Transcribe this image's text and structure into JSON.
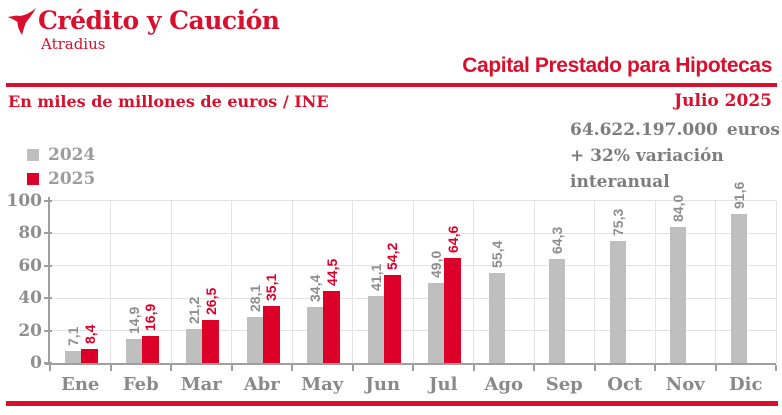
{
  "header": {
    "brand": {
      "name": "Crédito y Caución",
      "subname": "Atradius"
    },
    "title": "Capital Prestado para Hipotecas",
    "subtitle_left": "En miles de millones de euros / INE",
    "period": "Julio 2025"
  },
  "stats": {
    "value": "64.622.197.000",
    "unit": "euros",
    "line2": "+ 32% variación interanual"
  },
  "legend": {
    "items": [
      {
        "label": "2024",
        "color": "#bfbfbf"
      },
      {
        "label": "2025",
        "color": "#dc0028"
      }
    ]
  },
  "chart_data": {
    "type": "bar",
    "categories": [
      "Ene",
      "Feb",
      "Mar",
      "Abr",
      "May",
      "Jun",
      "Jul",
      "Ago",
      "Sep",
      "Oct",
      "Nov",
      "Dic"
    ],
    "series": [
      {
        "name": "2024",
        "color": "#bfbfbf",
        "label_color": "#8e8e8e",
        "values": [
          7.1,
          14.9,
          21.2,
          28.1,
          34.4,
          41.1,
          49.0,
          55.4,
          64.3,
          75.3,
          84.0,
          91.6
        ],
        "labels": [
          "7,1",
          "14,9",
          "21,2",
          "28,1",
          "34,4",
          "41,1",
          "49,0",
          "55,4",
          "64,3",
          "75,3",
          "84,0",
          "91,6"
        ]
      },
      {
        "name": "2025",
        "color": "#dc0028",
        "label_color": "#dc0028",
        "values": [
          8.4,
          16.9,
          26.5,
          35.1,
          44.5,
          54.2,
          64.6,
          null,
          null,
          null,
          null,
          null
        ],
        "labels": [
          "8,4",
          "16,9",
          "26,5",
          "35,1",
          "44,5",
          "54,2",
          "64,6",
          null,
          null,
          null,
          null,
          null
        ]
      }
    ],
    "ylim": [
      0,
      100
    ],
    "yticks": [
      0,
      20,
      40,
      60,
      80,
      100
    ],
    "grid": true,
    "legend_position": "top-left",
    "xlabel": "",
    "ylabel": ""
  },
  "colors": {
    "brand_red": "#d8102d",
    "bar_red": "#dc0028",
    "bar_gray": "#bfbfbf",
    "stat_text_gray": "#7d7d7d",
    "value_label_gray": "#8e8e8e",
    "month_label_gray": "#8a8a8a",
    "legend_text_gray": "#9c9c9c",
    "axis_gray": "#9f9f9f",
    "gridline_gray": "#e3e3e3",
    "background": "#ffffff"
  }
}
